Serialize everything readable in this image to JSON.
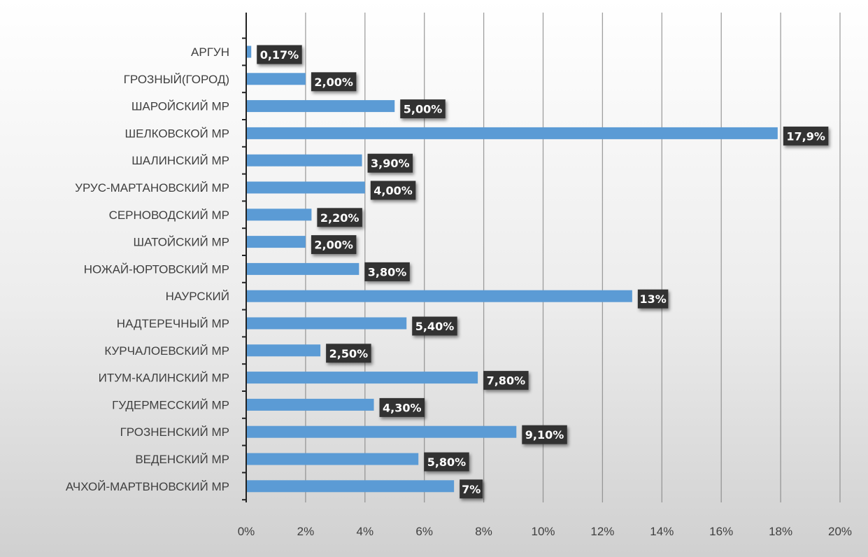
{
  "chart_data": {
    "type": "bar",
    "orientation": "horizontal",
    "categories": [
      "АРГУН",
      "ГРОЗНЫЙ(ГОРОД)",
      "ШАРОЙСКИЙ МР",
      "ШЕЛКОВСКОЙ МР",
      "ШАЛИНСКИЙ МР",
      "УРУС-МАРТАНОВСКИЙ МР",
      "СЕРНОВОДСКИЙ МР",
      "ШАТОЙСКИЙ МР",
      "НОЖАЙ-ЮРТОВСКИЙ МР",
      "НАУРСКИЙ",
      "НАДТЕРЕЧНЫЙ МР",
      "КУРЧАЛОЕВСКИЙ МР",
      "ИТУМ-КАЛИНСКИЙ МР",
      "ГУДЕРМЕССКИЙ МР",
      "ГРОЗНЕНСКИЙ МР",
      "ВЕДЕНСКИЙ МР",
      "АЧХОЙ-МАРТВНОВСКИЙ МР"
    ],
    "values": [
      0.17,
      2.0,
      5.0,
      17.9,
      3.9,
      4.0,
      2.2,
      2.0,
      3.8,
      13.0,
      5.4,
      2.5,
      7.8,
      4.3,
      9.1,
      5.8,
      7.0
    ],
    "data_labels": [
      "0,17%",
      "2,00%",
      "5,00%",
      "17,9%",
      "3,90%",
      "4,00%",
      "2,20%",
      "2,00%",
      "3,80%",
      "13%",
      "5,40%",
      "2,50%",
      "7,80%",
      "4,30%",
      "9,10%",
      "5,80%",
      "7%"
    ],
    "x_ticks": [
      "0%",
      "2%",
      "4%",
      "6%",
      "8%",
      "10%",
      "12%",
      "14%",
      "16%",
      "18%",
      "20%"
    ],
    "xlim": [
      0,
      20
    ],
    "title": "",
    "xlabel": "",
    "ylabel": "",
    "grid": true,
    "legend": "none",
    "colors": {
      "bar": "#5b9bd5",
      "label_box": "#333333",
      "label_text": "#ffffff",
      "grid": "#808080",
      "axis": "#222222",
      "background_top": "#ffffff",
      "background_bottom": "#d0d0d0"
    }
  }
}
